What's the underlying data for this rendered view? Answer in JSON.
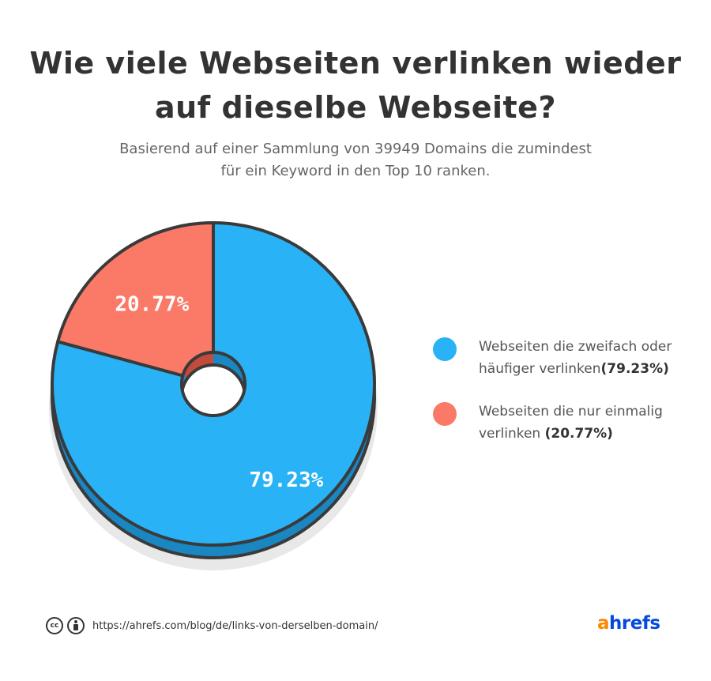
{
  "title": {
    "line1": "Wie viele Webseiten verlinken wieder",
    "line2": "auf dieselbe Webseite?"
  },
  "subtitle": {
    "line1": "Basierend auf einer Sammlung von 39949 Domains die zumindest",
    "line2": "für ein Keyword in den Top 10 ranken."
  },
  "colors": {
    "blue": "#29b2f5",
    "blue_side": "#1a86c2",
    "coral": "#fa7a67",
    "coral_side": "#c44b3b",
    "outline": "#3a3a3a",
    "shadow": "#e8e8e8"
  },
  "chart_data": {
    "type": "pie",
    "style": "donut-3d",
    "legend_position": "right",
    "slices": [
      {
        "label": "79.23%",
        "value": 79.23,
        "color": "#29b2f5"
      },
      {
        "label": "20.77%",
        "value": 20.77,
        "color": "#fa7a67"
      }
    ]
  },
  "legend": {
    "items": [
      {
        "line1": "Webseiten die zweifach oder",
        "line2": "häufiger verlinken",
        "pct": "(79.23%)",
        "close": "",
        "color": "#29b2f5"
      },
      {
        "line1": "Webseiten die nur einmalig",
        "line2": "verlinken ",
        "pct": "(20.77%)",
        "close": "",
        "color": "#fa7a67"
      }
    ]
  },
  "footer": {
    "cc_label": "cc",
    "url": "https://ahrefs.com/blog/de/links-von-derselben-domain/"
  },
  "logo": {
    "a": "a",
    "rest": "hrefs"
  }
}
